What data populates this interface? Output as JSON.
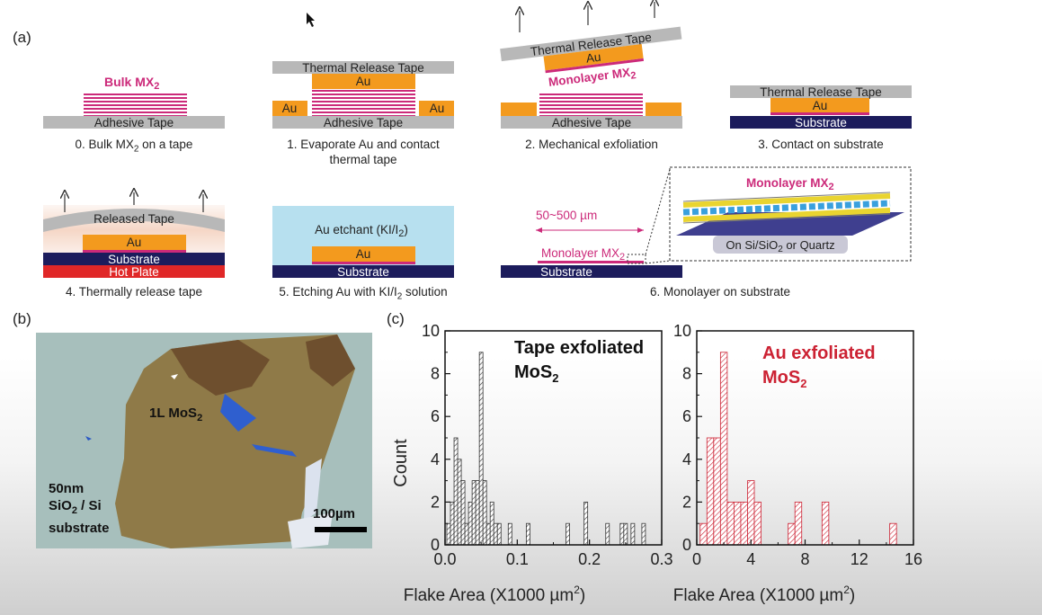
{
  "panel_a": {
    "label": "(a)",
    "tape_adhesive": "Adhesive Tape",
    "tape_thermal": "Thermal Release Tape",
    "bulk": "Bulk MX",
    "sub2": "2",
    "au": "Au",
    "monolayer": "Monolayer MX",
    "substrate": "Substrate",
    "released_tape": "Released Tape",
    "hot_plate": "Hot Plate",
    "etchant_pre": "Au etchant (KI/I",
    "etchant_post": ")",
    "size_range": "50~500  µm",
    "inset_title": "Monolayer MX",
    "inset_sub": "On Si/SiO",
    "inset_sub_post": " or Quartz",
    "captions": {
      "step0_pre": "0. Bulk MX",
      "step0_post": " on a tape",
      "step1_line1": "1. Evaporate Au and contact",
      "step1_line2": "thermal tape",
      "step2": "2. Mechanical exfoliation",
      "step3": "3. Contact on substrate",
      "step4": "4. Thermally release tape",
      "step5_pre": "5. Etching Au with KI/I",
      "step5_post": " solution",
      "step6": "6. Monolayer on substrate"
    }
  },
  "panel_b": {
    "label": "(b)",
    "flake_label": "1L MoS",
    "substrate_lines": [
      "50nm",
      "SiO",
      " / Si",
      "substrate"
    ],
    "scale_label": "100µm"
  },
  "panel_c": {
    "label": "(c)",
    "ylabel": "Count",
    "xlabel": "Flake Area (X1000 µm",
    "xlabel_post": ")",
    "left_title_line1": "Tape exfoliated",
    "left_title_line2": "MoS",
    "right_title_line1": "Au exfoliated",
    "right_title_line2": "MoS",
    "colors": {
      "left": "#333333",
      "right": "#cc2233"
    }
  },
  "chart_data": [
    {
      "type": "bar",
      "title": "Tape exfoliated MoS2",
      "xlabel": "Flake Area (X1000 µm2)",
      "ylabel": "Count",
      "xlim": [
        0,
        0.3
      ],
      "ylim": [
        0,
        10
      ],
      "x_ticks": [
        "0.0",
        "0.1",
        "0.2",
        "0.3"
      ],
      "y_ticks": [
        "0",
        "2",
        "4",
        "6",
        "8",
        "10"
      ],
      "bin_width": 0.005,
      "bins": [
        {
          "x": 0.005,
          "count": 1
        },
        {
          "x": 0.01,
          "count": 2
        },
        {
          "x": 0.015,
          "count": 5
        },
        {
          "x": 0.02,
          "count": 4
        },
        {
          "x": 0.025,
          "count": 3
        },
        {
          "x": 0.03,
          "count": 1
        },
        {
          "x": 0.035,
          "count": 2
        },
        {
          "x": 0.04,
          "count": 3
        },
        {
          "x": 0.045,
          "count": 3
        },
        {
          "x": 0.05,
          "count": 9
        },
        {
          "x": 0.055,
          "count": 3
        },
        {
          "x": 0.06,
          "count": 1
        },
        {
          "x": 0.065,
          "count": 2
        },
        {
          "x": 0.07,
          "count": 1
        },
        {
          "x": 0.075,
          "count": 1
        },
        {
          "x": 0.09,
          "count": 1
        },
        {
          "x": 0.115,
          "count": 1
        },
        {
          "x": 0.17,
          "count": 1
        },
        {
          "x": 0.195,
          "count": 2
        },
        {
          "x": 0.225,
          "count": 1
        },
        {
          "x": 0.245,
          "count": 1
        },
        {
          "x": 0.25,
          "count": 1
        },
        {
          "x": 0.26,
          "count": 1
        },
        {
          "x": 0.275,
          "count": 1
        }
      ]
    },
    {
      "type": "bar",
      "title": "Au exfoliated MoS2",
      "xlabel": "Flake Area (X1000 µm2)",
      "ylabel": "Count",
      "xlim": [
        0,
        16
      ],
      "ylim": [
        0,
        10
      ],
      "x_ticks": [
        "0",
        "4",
        "8",
        "12",
        "16"
      ],
      "y_ticks": [
        "0",
        "2",
        "4",
        "6",
        "8",
        "10"
      ],
      "bin_width": 0.5,
      "bins": [
        {
          "x": 0.5,
          "count": 1
        },
        {
          "x": 1.0,
          "count": 5
        },
        {
          "x": 1.5,
          "count": 5
        },
        {
          "x": 2.0,
          "count": 9
        },
        {
          "x": 2.5,
          "count": 2
        },
        {
          "x": 3.0,
          "count": 2
        },
        {
          "x": 3.5,
          "count": 2
        },
        {
          "x": 4.0,
          "count": 3
        },
        {
          "x": 4.5,
          "count": 2
        },
        {
          "x": 7.0,
          "count": 1
        },
        {
          "x": 7.5,
          "count": 2
        },
        {
          "x": 9.5,
          "count": 2
        },
        {
          "x": 14.5,
          "count": 1
        }
      ]
    }
  ]
}
